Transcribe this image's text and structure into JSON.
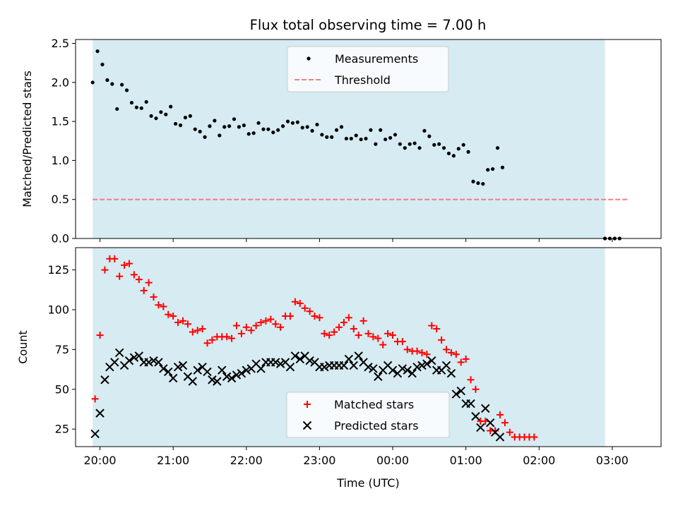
{
  "chart_data": {
    "type": "scatter",
    "title": "Flux total observing time = 7.00 h",
    "xlabel": "Time (UTC)",
    "x_ticks": [
      "20:00",
      "21:00",
      "22:00",
      "23:00",
      "00:00",
      "01:00",
      "02:00",
      "03:00"
    ],
    "x_start": "19:40",
    "x_end": "03:40",
    "shaded_region": {
      "from": "19:54",
      "to": "02:54",
      "color": "#add8e6"
    },
    "top_panel": {
      "ylabel": "Matched/Predicted stars",
      "ylim": [
        0,
        2.55
      ],
      "y_ticks": [
        0.0,
        0.5,
        1.0,
        1.5,
        2.0,
        2.5
      ],
      "y_tick_labels": [
        "0.0",
        "0.5",
        "1.0",
        "1.5",
        "2.0",
        "2.5"
      ],
      "legend": [
        "Measurements",
        "Threshold"
      ],
      "legend_position": "top-center",
      "threshold": {
        "name": "Threshold",
        "value": 0.5,
        "from": "19:54",
        "to": "03:14",
        "color": "#f08080",
        "style": "dashed"
      },
      "measurements": {
        "name": "Measurements",
        "color": "#000000",
        "points": [
          [
            "19:54",
            2.0
          ],
          [
            "19:58",
            2.4
          ],
          [
            "20:02",
            2.23
          ],
          [
            "20:06",
            2.03
          ],
          [
            "20:10",
            1.98
          ],
          [
            "20:14",
            1.66
          ],
          [
            "20:18",
            1.97
          ],
          [
            "20:22",
            1.9
          ],
          [
            "20:26",
            1.74
          ],
          [
            "20:30",
            1.68
          ],
          [
            "20:34",
            1.67
          ],
          [
            "20:38",
            1.75
          ],
          [
            "20:42",
            1.57
          ],
          [
            "20:46",
            1.54
          ],
          [
            "20:50",
            1.62
          ],
          [
            "20:54",
            1.59
          ],
          [
            "20:58",
            1.69
          ],
          [
            "21:02",
            1.47
          ],
          [
            "21:06",
            1.45
          ],
          [
            "21:10",
            1.55
          ],
          [
            "21:14",
            1.57
          ],
          [
            "21:18",
            1.4
          ],
          [
            "21:22",
            1.37
          ],
          [
            "21:26",
            1.3
          ],
          [
            "21:30",
            1.44
          ],
          [
            "21:34",
            1.51
          ],
          [
            "21:38",
            1.32
          ],
          [
            "21:42",
            1.43
          ],
          [
            "21:46",
            1.44
          ],
          [
            "21:50",
            1.53
          ],
          [
            "21:54",
            1.43
          ],
          [
            "21:58",
            1.45
          ],
          [
            "22:02",
            1.34
          ],
          [
            "22:06",
            1.35
          ],
          [
            "22:10",
            1.48
          ],
          [
            "22:14",
            1.4
          ],
          [
            "22:18",
            1.4
          ],
          [
            "22:22",
            1.36
          ],
          [
            "22:26",
            1.39
          ],
          [
            "22:30",
            1.44
          ],
          [
            "22:34",
            1.5
          ],
          [
            "22:38",
            1.48
          ],
          [
            "22:42",
            1.49
          ],
          [
            "22:46",
            1.42
          ],
          [
            "22:50",
            1.43
          ],
          [
            "22:54",
            1.38
          ],
          [
            "22:58",
            1.46
          ],
          [
            "23:02",
            1.33
          ],
          [
            "23:06",
            1.3
          ],
          [
            "23:10",
            1.3
          ],
          [
            "23:14",
            1.39
          ],
          [
            "23:18",
            1.43
          ],
          [
            "23:22",
            1.28
          ],
          [
            "23:26",
            1.28
          ],
          [
            "23:30",
            1.32
          ],
          [
            "23:34",
            1.27
          ],
          [
            "23:38",
            1.28
          ],
          [
            "23:42",
            1.39
          ],
          [
            "23:46",
            1.21
          ],
          [
            "23:50",
            1.39
          ],
          [
            "23:54",
            1.27
          ],
          [
            "23:58",
            1.29
          ],
          [
            "00:02",
            1.33
          ],
          [
            "00:06",
            1.21
          ],
          [
            "00:10",
            1.16
          ],
          [
            "00:14",
            1.21
          ],
          [
            "00:18",
            1.22
          ],
          [
            "00:22",
            1.16
          ],
          [
            "00:26",
            1.38
          ],
          [
            "00:30",
            1.31
          ],
          [
            "00:34",
            1.2
          ],
          [
            "00:38",
            1.21
          ],
          [
            "00:42",
            1.16
          ],
          [
            "00:46",
            1.09
          ],
          [
            "00:50",
            1.06
          ],
          [
            "00:54",
            1.15
          ],
          [
            "00:58",
            1.2
          ],
          [
            "01:02",
            1.11
          ],
          [
            "01:06",
            0.73
          ],
          [
            "01:10",
            0.71
          ],
          [
            "01:14",
            0.7
          ],
          [
            "01:18",
            0.88
          ],
          [
            "01:22",
            0.89
          ],
          [
            "01:26",
            1.16
          ],
          [
            "01:30",
            0.91
          ],
          [
            "02:54",
            0.0
          ],
          [
            "02:58",
            0.0
          ],
          [
            "03:02",
            0.0
          ],
          [
            "03:06",
            0.0
          ]
        ]
      }
    },
    "bottom_panel": {
      "ylabel": "Count",
      "ylim": [
        14,
        139
      ],
      "y_ticks": [
        25,
        50,
        75,
        100,
        125
      ],
      "y_tick_labels": [
        "25",
        "50",
        "75",
        "100",
        "125"
      ],
      "legend": [
        "Matched stars",
        "Predicted stars"
      ],
      "legend_position": "bottom-center",
      "series": [
        {
          "name": "Matched stars",
          "marker": "plus",
          "color": "#ff0000",
          "points": [
            [
              "19:56",
              44
            ],
            [
              "20:00",
              84
            ],
            [
              "20:04",
              125
            ],
            [
              "20:08",
              132
            ],
            [
              "20:12",
              132
            ],
            [
              "20:16",
              121
            ],
            [
              "20:20",
              128
            ],
            [
              "20:24",
              129
            ],
            [
              "20:28",
              122
            ],
            [
              "20:32",
              119
            ],
            [
              "20:36",
              112
            ],
            [
              "20:40",
              117
            ],
            [
              "20:44",
              108
            ],
            [
              "20:48",
              103
            ],
            [
              "20:52",
              102
            ],
            [
              "20:56",
              97
            ],
            [
              "21:00",
              96
            ],
            [
              "21:04",
              92
            ],
            [
              "21:08",
              93
            ],
            [
              "21:12",
              91
            ],
            [
              "21:16",
              86
            ],
            [
              "21:20",
              87
            ],
            [
              "21:24",
              88
            ],
            [
              "21:28",
              79
            ],
            [
              "21:32",
              81
            ],
            [
              "21:36",
              83
            ],
            [
              "21:40",
              83
            ],
            [
              "21:44",
              83
            ],
            [
              "21:48",
              82
            ],
            [
              "21:52",
              90
            ],
            [
              "21:56",
              85
            ],
            [
              "22:00",
              89
            ],
            [
              "22:04",
              87
            ],
            [
              "22:08",
              90
            ],
            [
              "22:12",
              92
            ],
            [
              "22:16",
              93
            ],
            [
              "22:20",
              94
            ],
            [
              "22:24",
              91
            ],
            [
              "22:28",
              89
            ],
            [
              "22:32",
              96
            ],
            [
              "22:36",
              96
            ],
            [
              "22:40",
              105
            ],
            [
              "22:44",
              104
            ],
            [
              "22:48",
              101
            ],
            [
              "22:52",
              99
            ],
            [
              "22:56",
              96
            ],
            [
              "23:00",
              95
            ],
            [
              "23:04",
              85
            ],
            [
              "23:08",
              84
            ],
            [
              "23:12",
              86
            ],
            [
              "23:16",
              89
            ],
            [
              "23:20",
              92
            ],
            [
              "23:24",
              95
            ],
            [
              "23:28",
              88
            ],
            [
              "23:32",
              84
            ],
            [
              "23:36",
              93
            ],
            [
              "23:40",
              85
            ],
            [
              "23:44",
              83
            ],
            [
              "23:48",
              82
            ],
            [
              "23:52",
              78
            ],
            [
              "23:56",
              85
            ],
            [
              "00:00",
              84
            ],
            [
              "00:04",
              80
            ],
            [
              "00:08",
              80
            ],
            [
              "00:12",
              75
            ],
            [
              "00:16",
              74
            ],
            [
              "00:20",
              74
            ],
            [
              "00:24",
              73
            ],
            [
              "00:28",
              72
            ],
            [
              "00:32",
              90
            ],
            [
              "00:36",
              88
            ],
            [
              "00:40",
              81
            ],
            [
              "00:44",
              75
            ],
            [
              "00:48",
              73
            ],
            [
              "00:52",
              72
            ],
            [
              "00:56",
              67
            ],
            [
              "01:00",
              69
            ],
            [
              "01:04",
              56
            ],
            [
              "01:08",
              50
            ],
            [
              "01:12",
              30
            ],
            [
              "01:16",
              30
            ],
            [
              "01:20",
              24
            ],
            [
              "01:24",
              24
            ],
            [
              "01:28",
              34
            ],
            [
              "01:32",
              29
            ],
            [
              "01:36",
              23
            ],
            [
              "01:40",
              20
            ],
            [
              "01:44",
              20
            ],
            [
              "01:48",
              20
            ],
            [
              "01:52",
              20
            ],
            [
              "01:56",
              20
            ]
          ]
        },
        {
          "name": "Predicted stars",
          "marker": "x",
          "color": "#000000",
          "points": [
            [
              "19:56",
              22
            ],
            [
              "20:00",
              35
            ],
            [
              "20:04",
              56
            ],
            [
              "20:08",
              64
            ],
            [
              "20:12",
              67
            ],
            [
              "20:16",
              73
            ],
            [
              "20:20",
              65
            ],
            [
              "20:24",
              68
            ],
            [
              "20:28",
              70
            ],
            [
              "20:32",
              71
            ],
            [
              "20:36",
              67
            ],
            [
              "20:40",
              67
            ],
            [
              "20:44",
              68
            ],
            [
              "20:48",
              67
            ],
            [
              "20:52",
              63
            ],
            [
              "20:56",
              61
            ],
            [
              "21:00",
              57
            ],
            [
              "21:04",
              64
            ],
            [
              "21:08",
              65
            ],
            [
              "21:12",
              58
            ],
            [
              "21:16",
              55
            ],
            [
              "21:20",
              62
            ],
            [
              "21:24",
              64
            ],
            [
              "21:28",
              61
            ],
            [
              "21:32",
              56
            ],
            [
              "21:36",
              55
            ],
            [
              "21:40",
              62
            ],
            [
              "21:44",
              58
            ],
            [
              "21:48",
              57
            ],
            [
              "21:52",
              59
            ],
            [
              "21:56",
              60
            ],
            [
              "22:00",
              62
            ],
            [
              "22:04",
              63
            ],
            [
              "22:08",
              66
            ],
            [
              "22:12",
              63
            ],
            [
              "22:16",
              67
            ],
            [
              "22:20",
              67
            ],
            [
              "22:24",
              67
            ],
            [
              "22:28",
              66
            ],
            [
              "22:32",
              67
            ],
            [
              "22:36",
              64
            ],
            [
              "22:40",
              71
            ],
            [
              "22:44",
              69
            ],
            [
              "22:48",
              71
            ],
            [
              "22:52",
              68
            ],
            [
              "22:56",
              67
            ],
            [
              "23:00",
              64
            ],
            [
              "23:04",
              64
            ],
            [
              "23:08",
              65
            ],
            [
              "23:12",
              65
            ],
            [
              "23:16",
              65
            ],
            [
              "23:20",
              65
            ],
            [
              "23:24",
              69
            ],
            [
              "23:28",
              65
            ],
            [
              "23:32",
              71
            ],
            [
              "23:36",
              67
            ],
            [
              "23:40",
              64
            ],
            [
              "23:44",
              63
            ],
            [
              "23:48",
              58
            ],
            [
              "23:52",
              62
            ],
            [
              "23:56",
              65
            ],
            [
              "00:00",
              62
            ],
            [
              "00:04",
              60
            ],
            [
              "00:08",
              63
            ],
            [
              "00:12",
              62
            ],
            [
              "00:16",
              60
            ],
            [
              "00:20",
              64
            ],
            [
              "00:24",
              65
            ],
            [
              "00:28",
              66
            ],
            [
              "00:32",
              68
            ],
            [
              "00:36",
              62
            ],
            [
              "00:40",
              62
            ],
            [
              "00:44",
              65
            ],
            [
              "00:48",
              60
            ],
            [
              "00:52",
              47
            ],
            [
              "00:56",
              49
            ],
            [
              "01:00",
              41
            ],
            [
              "01:04",
              41
            ],
            [
              "01:08",
              33
            ],
            [
              "01:12",
              26
            ],
            [
              "01:16",
              38
            ],
            [
              "01:20",
              29
            ],
            [
              "01:24",
              23
            ],
            [
              "01:28",
              20
            ]
          ]
        }
      ]
    }
  }
}
